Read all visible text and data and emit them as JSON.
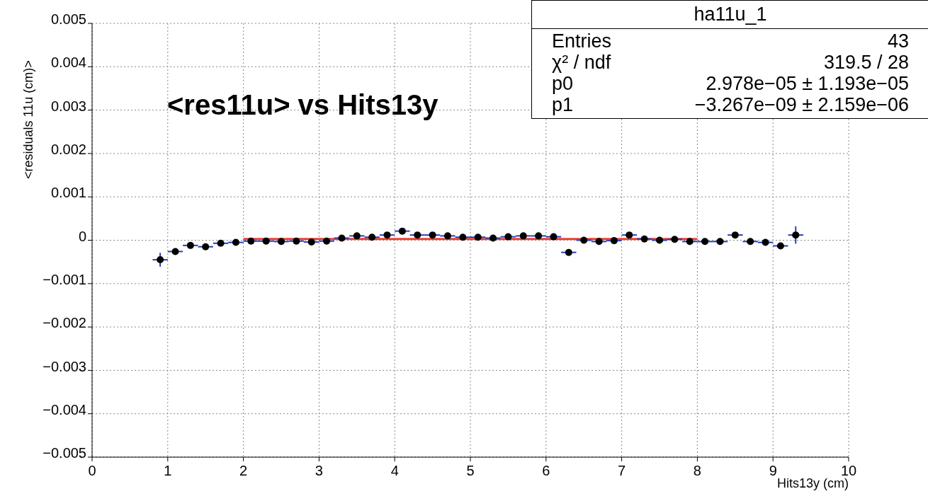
{
  "chart_data": {
    "type": "scatter",
    "title": "<res11u> vs Hits13y",
    "xlabel": "Hits13y (cm)",
    "ylabel": "<residuals 11u (cm)>",
    "x": [
      0.9,
      1.1,
      1.3,
      1.5,
      1.7,
      1.9,
      2.1,
      2.3,
      2.5,
      2.7,
      2.9,
      3.1,
      3.3,
      3.5,
      3.7,
      3.9,
      4.1,
      4.3,
      4.5,
      4.7,
      4.9,
      5.1,
      5.3,
      5.5,
      5.7,
      5.9,
      6.1,
      6.3,
      6.5,
      6.7,
      6.9,
      7.1,
      7.3,
      7.5,
      7.7,
      7.9,
      8.1,
      8.3,
      8.5,
      8.7,
      8.9,
      9.1,
      9.3
    ],
    "series": [
      {
        "color": "#000000",
        "marker": "circle",
        "values": [
          -0.00045,
          -0.00026,
          -0.00012,
          -0.00015,
          -7e-05,
          -5e-05,
          -2e-05,
          -2e-05,
          -3e-05,
          -2e-05,
          -4e-05,
          -2e-05,
          5e-05,
          0.0001,
          7e-05,
          0.00012,
          0.00021,
          0.00012,
          0.00012,
          0.0001,
          7e-05,
          7e-05,
          5e-05,
          8e-05,
          0.0001,
          0.0001,
          8e-05,
          -0.00028,
          0,
          -3e-05,
          -1e-05,
          0.00012,
          3e-05,
          0,
          2e-05,
          -3e-05,
          -3e-05,
          -3e-05,
          0.00012,
          -3e-05,
          -5e-05,
          -0.00013,
          0.00012
        ],
        "errors": [
          0.00016,
          null,
          null,
          null,
          null,
          null,
          null,
          null,
          null,
          null,
          null,
          null,
          null,
          null,
          null,
          null,
          null,
          null,
          null,
          null,
          null,
          null,
          null,
          null,
          null,
          null,
          null,
          null,
          null,
          null,
          null,
          null,
          null,
          null,
          null,
          null,
          null,
          null,
          null,
          null,
          null,
          null,
          0.0002
        ],
        "xerrors": [
          0.1,
          0.1,
          0.1,
          0.1,
          0.1,
          0.1,
          0.1,
          0.1,
          0.1,
          0.1,
          0.1,
          0.1,
          0.1,
          0.1,
          0.1,
          0.1,
          0.1,
          0.1,
          0.1,
          0.1,
          0.1,
          0.1,
          0.1,
          0.1,
          0.1,
          0.1,
          0.1,
          0.1,
          0.1,
          0.1,
          0.1,
          0.1,
          0.1,
          0.1,
          0.1,
          0.1,
          0.1,
          0.1,
          0.1,
          0.1,
          0.1,
          0.1,
          0.1
        ]
      },
      {
        "type": "line",
        "color": "#e8423a",
        "x": [
          2,
          8
        ],
        "values": [
          3e-05,
          3e-05
        ]
      }
    ],
    "xlim": [
      0,
      10
    ],
    "xticks": [
      0,
      1,
      2,
      3,
      4,
      5,
      6,
      7,
      8,
      9,
      10
    ],
    "ylim": [
      -0.005,
      0.005
    ],
    "yticks": [
      {
        "value": -0.005,
        "label": "−0.005"
      },
      {
        "value": -0.004,
        "label": "−0.004"
      },
      {
        "value": -0.003,
        "label": "−0.003"
      },
      {
        "value": -0.002,
        "label": "−0.002"
      },
      {
        "value": -0.001,
        "label": "−0.001"
      },
      0,
      0.001,
      0.002,
      0.003,
      0.004,
      0.005
    ],
    "grid": true,
    "annotations": [
      "ha11u_1",
      "Entries",
      "43",
      "χ² / ndf",
      "319.5 / 28",
      "p0",
      "2.978e−05 ± 1.193e−05",
      "p1",
      "−3.267e−09 ± 2.159e−06"
    ]
  }
}
